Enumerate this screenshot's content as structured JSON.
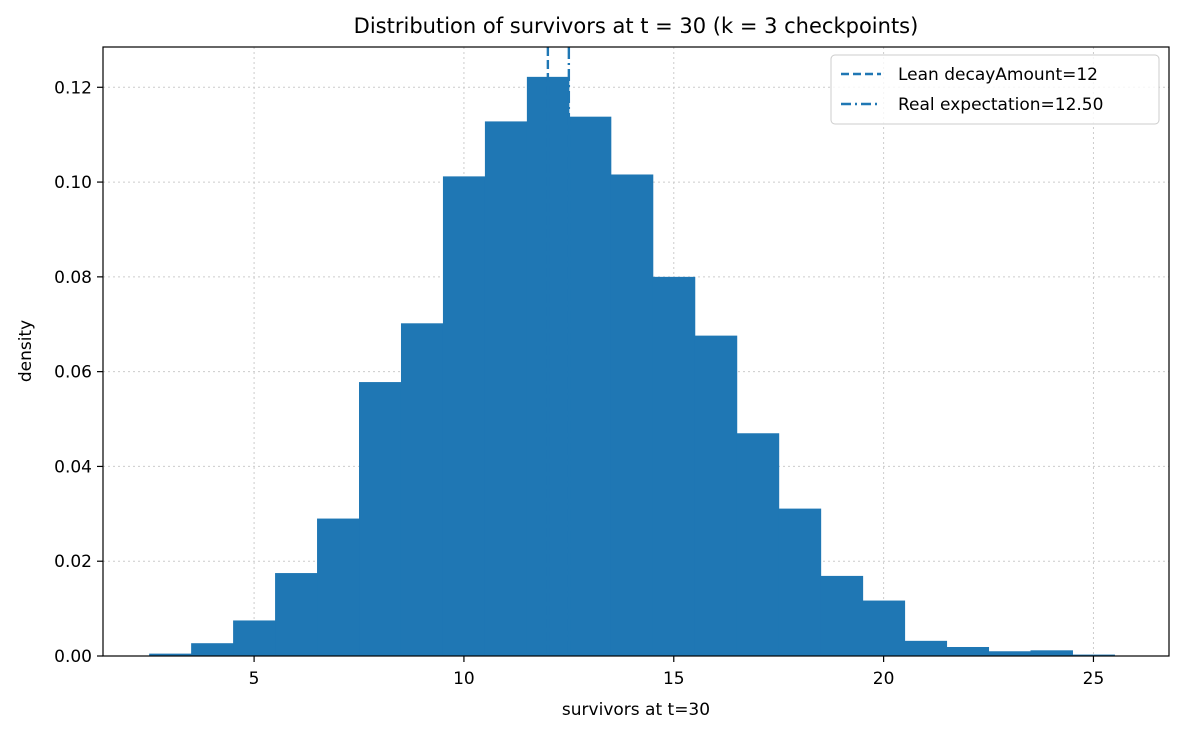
{
  "chart_data": {
    "type": "bar",
    "title": "Distribution of survivors at t = 30 (k = 3 checkpoints)",
    "xlabel": "survivors at t=30",
    "ylabel": "density",
    "xlim": [
      1.4,
      26.8
    ],
    "ylim": [
      0,
      0.1285
    ],
    "xticks": [
      5,
      10,
      15,
      20,
      25
    ],
    "yticks": [
      0.0,
      0.02,
      0.04,
      0.06,
      0.08,
      0.1,
      0.12
    ],
    "xtick_labels": [
      "5",
      "10",
      "15",
      "20",
      "25"
    ],
    "ytick_labels": [
      "0.00",
      "0.02",
      "0.04",
      "0.06",
      "0.08",
      "0.10",
      "0.12"
    ],
    "grid": true,
    "legend_position": "upper-right",
    "bar_color": "#1f77b4",
    "bins": [
      {
        "x0": 2.5,
        "x1": 3.5,
        "value": 0.0005
      },
      {
        "x0": 3.5,
        "x1": 4.5,
        "value": 0.0027
      },
      {
        "x0": 4.5,
        "x1": 5.5,
        "value": 0.0075
      },
      {
        "x0": 5.5,
        "x1": 6.5,
        "value": 0.0175
      },
      {
        "x0": 6.5,
        "x1": 7.5,
        "value": 0.029
      },
      {
        "x0": 7.5,
        "x1": 8.5,
        "value": 0.0578
      },
      {
        "x0": 8.5,
        "x1": 9.5,
        "value": 0.0702
      },
      {
        "x0": 9.5,
        "x1": 10.5,
        "value": 0.1012
      },
      {
        "x0": 10.5,
        "x1": 11.5,
        "value": 0.1128
      },
      {
        "x0": 11.5,
        "x1": 12.5,
        "value": 0.1222
      },
      {
        "x0": 12.5,
        "x1": 13.5,
        "value": 0.1138
      },
      {
        "x0": 13.5,
        "x1": 14.5,
        "value": 0.1016
      },
      {
        "x0": 14.5,
        "x1": 15.5,
        "value": 0.08
      },
      {
        "x0": 15.5,
        "x1": 16.5,
        "value": 0.0676
      },
      {
        "x0": 16.5,
        "x1": 17.5,
        "value": 0.047
      },
      {
        "x0": 17.5,
        "x1": 18.5,
        "value": 0.0311
      },
      {
        "x0": 18.5,
        "x1": 19.5,
        "value": 0.0169
      },
      {
        "x0": 19.5,
        "x1": 20.5,
        "value": 0.0117
      },
      {
        "x0": 20.5,
        "x1": 21.5,
        "value": 0.0032
      },
      {
        "x0": 21.5,
        "x1": 22.5,
        "value": 0.0019
      },
      {
        "x0": 22.5,
        "x1": 23.5,
        "value": 0.001
      },
      {
        "x0": 23.5,
        "x1": 24.5,
        "value": 0.0012
      },
      {
        "x0": 24.5,
        "x1": 25.5,
        "value": 0.0003
      }
    ],
    "vlines": [
      {
        "label": "Lean decayAmount=12",
        "x": 12,
        "style": "dashed",
        "color": "#1f77b4"
      },
      {
        "label": "Real expectation=12.50",
        "x": 12.5,
        "style": "dashdot",
        "color": "#1f77b4"
      }
    ]
  }
}
